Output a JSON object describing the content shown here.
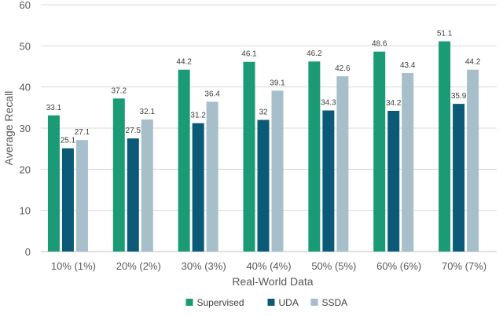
{
  "chart_data": {
    "type": "bar",
    "title": "",
    "xlabel": "Real-World Data",
    "ylabel": "Average Recall",
    "ylim": [
      0,
      60
    ],
    "yticks": [
      0,
      10,
      20,
      30,
      40,
      50,
      60
    ],
    "grid": true,
    "legend_position": "bottom-center",
    "categories": [
      "10% (1%)",
      "20% (2%)",
      "30% (3%)",
      "40% (4%)",
      "50% (5%)",
      "60% (6%)",
      "70% (7%)"
    ],
    "series": [
      {
        "name": "Supervised",
        "color": "#1b9a76",
        "values": [
          33.1,
          37.2,
          44.2,
          46.1,
          46.2,
          48.6,
          51.1
        ]
      },
      {
        "name": "UDA",
        "color": "#0b5a78",
        "values": [
          25.1,
          27.5,
          31.2,
          32,
          34.3,
          34.2,
          35.9
        ]
      },
      {
        "name": "SSDA",
        "color": "#a6bfca",
        "values": [
          27.1,
          32.1,
          36.4,
          39.1,
          42.6,
          43.4,
          44.2
        ]
      }
    ]
  },
  "colors": {
    "grid": "#d9d9d9",
    "axis": "#bfbfbf"
  }
}
